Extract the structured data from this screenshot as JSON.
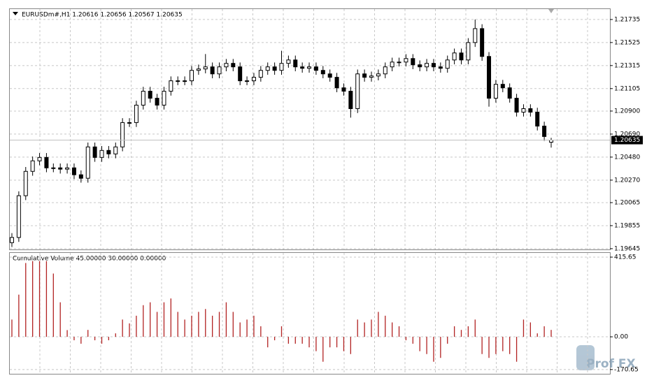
{
  "chart_data": [
    {
      "type": "candlestick",
      "title": "EURUSDm#,H1  1.20616 1.20656 1.20567 1.20635",
      "open": [
        1.197,
        1.19747,
        1.20128,
        1.2035,
        1.20446,
        1.20477,
        1.20382,
        1.20382,
        1.2037,
        1.20382,
        1.20319,
        1.20287,
        1.20573,
        1.20477,
        1.20541,
        1.20509,
        1.20573,
        1.20795,
        1.20795,
        1.20954,
        1.21081,
        1.21017,
        1.20954,
        1.21081,
        1.21176,
        1.21176,
        1.21176,
        1.21271,
        1.21284,
        1.21303,
        1.21239,
        1.21303,
        1.21335,
        1.21303,
        1.21176,
        1.21176,
        1.21208,
        1.21271,
        1.21303,
        1.21271,
        1.21335,
        1.21366,
        1.21303,
        1.2129,
        1.21303,
        1.21271,
        1.21239,
        1.21208,
        1.21112,
        1.21081,
        1.20922,
        1.21239,
        1.21208,
        1.2122,
        1.21239,
        1.21303,
        1.21347,
        1.21347,
        1.21379,
        1.21322,
        1.21303,
        1.21335,
        1.21303,
        1.2129,
        1.21366,
        1.2143,
        1.21366,
        1.21525,
        1.21652,
        1.21398,
        1.21017,
        1.21144,
        1.21112,
        1.21017,
        1.2089,
        1.20922,
        1.2089,
        1.20763,
        1.20616
      ],
      "high": [
        1.19787,
        1.20168,
        1.2039,
        1.20486,
        1.20517,
        1.20517,
        1.20422,
        1.20422,
        1.20422,
        1.20422,
        1.20359,
        1.20613,
        1.20613,
        1.20581,
        1.20581,
        1.20613,
        1.20835,
        1.20835,
        1.20994,
        1.21121,
        1.21121,
        1.21057,
        1.21121,
        1.21216,
        1.21216,
        1.21216,
        1.21311,
        1.21324,
        1.2142,
        1.21343,
        1.21343,
        1.21375,
        1.21375,
        1.21343,
        1.21216,
        1.21248,
        1.21311,
        1.21343,
        1.21343,
        1.2145,
        1.21406,
        1.21406,
        1.21343,
        1.21343,
        1.21343,
        1.21311,
        1.21279,
        1.21248,
        1.21152,
        1.21121,
        1.21279,
        1.21279,
        1.2126,
        1.21279,
        1.21343,
        1.21387,
        1.21387,
        1.21419,
        1.21419,
        1.21362,
        1.21375,
        1.21375,
        1.21343,
        1.21406,
        1.2147,
        1.2147,
        1.21565,
        1.21735,
        1.21692,
        1.21438,
        1.21184,
        1.21184,
        1.21152,
        1.21057,
        1.20962,
        1.20962,
        1.2093,
        1.20803,
        1.20656
      ],
      "low": [
        1.1966,
        1.19707,
        1.20088,
        1.2031,
        1.20406,
        1.20342,
        1.20342,
        1.2033,
        1.2033,
        1.20279,
        1.20247,
        1.20247,
        1.20437,
        1.20437,
        1.20469,
        1.20469,
        1.20533,
        1.20755,
        1.20755,
        1.20914,
        1.20977,
        1.20914,
        1.20914,
        1.21041,
        1.21136,
        1.21136,
        1.21136,
        1.21231,
        1.21244,
        1.21199,
        1.21199,
        1.21263,
        1.21263,
        1.21136,
        1.21136,
        1.21136,
        1.21168,
        1.21231,
        1.21231,
        1.21231,
        1.21295,
        1.21263,
        1.2125,
        1.2125,
        1.21231,
        1.21199,
        1.21168,
        1.21072,
        1.21041,
        1.2084,
        1.20882,
        1.21168,
        1.21168,
        1.2118,
        1.21199,
        1.21263,
        1.21307,
        1.21307,
        1.21282,
        1.21263,
        1.21263,
        1.21263,
        1.2125,
        1.2125,
        1.21326,
        1.21326,
        1.21326,
        1.21485,
        1.21358,
        1.2094,
        1.20977,
        1.21072,
        1.20977,
        1.2085,
        1.2085,
        1.2085,
        1.20723,
        1.20628,
        1.20567
      ],
      "close": [
        1.19747,
        1.20128,
        1.2035,
        1.20446,
        1.20477,
        1.20382,
        1.20382,
        1.2037,
        1.20382,
        1.20319,
        1.20287,
        1.20573,
        1.20477,
        1.20541,
        1.20509,
        1.20573,
        1.20795,
        1.20795,
        1.20954,
        1.21081,
        1.21017,
        1.20954,
        1.21081,
        1.21176,
        1.21176,
        1.21176,
        1.21271,
        1.21284,
        1.21303,
        1.21239,
        1.21303,
        1.21335,
        1.21303,
        1.21176,
        1.21176,
        1.21208,
        1.21271,
        1.21303,
        1.21271,
        1.21335,
        1.21366,
        1.21303,
        1.2129,
        1.21303,
        1.21271,
        1.21239,
        1.21208,
        1.21112,
        1.21081,
        1.20922,
        1.21239,
        1.21208,
        1.2122,
        1.21239,
        1.21303,
        1.21347,
        1.21347,
        1.21379,
        1.21322,
        1.21303,
        1.21335,
        1.21303,
        1.2129,
        1.21366,
        1.2143,
        1.21366,
        1.21525,
        1.21652,
        1.21398,
        1.21017,
        1.21144,
        1.21112,
        1.21017,
        1.2089,
        1.20922,
        1.2089,
        1.20763,
        1.20668,
        1.20635
      ],
      "ylim": [
        1.19638,
        1.2183
      ],
      "yticks": [
        1.21735,
        1.21525,
        1.21315,
        1.21105,
        {
          "value": 1.209,
          "label": "1.20900"
        },
        {
          "value": 1.2069,
          "label": "1.20690"
        },
        {
          "value": 1.2048,
          "label": "1.20480"
        },
        {
          "value": 1.2027,
          "label": "1.20270"
        },
        1.20065,
        1.19855,
        1.19645
      ],
      "grid": true
    },
    {
      "type": "bar",
      "title": "Cumulative Volume 45.00000 30.00000 0.00000",
      "color": "#b22222",
      "values": [
        90,
        220,
        385,
        395,
        395,
        395,
        330,
        180,
        35,
        -18,
        -36,
        36,
        -18,
        -36,
        -18,
        18,
        90,
        70,
        110,
        165,
        180,
        130,
        180,
        200,
        130,
        90,
        110,
        130,
        145,
        110,
        130,
        180,
        130,
        75,
        90,
        110,
        55,
        -55,
        -18,
        55,
        -36,
        -36,
        -36,
        -55,
        -75,
        -130,
        -55,
        -55,
        -75,
        -90,
        90,
        75,
        90,
        130,
        110,
        75,
        55,
        -18,
        -36,
        -75,
        -90,
        -130,
        -110,
        -36,
        55,
        36,
        55,
        90,
        -90,
        -110,
        -90,
        -75,
        -90,
        -130,
        90,
        75,
        18,
        55,
        36
      ],
      "ylim": [
        -193,
        437.5
      ],
      "yticks": [
        415.65,
        {
          "value": 0,
          "label": "0.00"
        },
        -170.65
      ],
      "grid": true
    }
  ],
  "watermark": "Prof FX"
}
